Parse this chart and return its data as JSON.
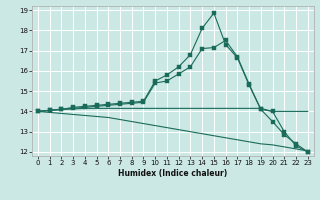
{
  "xlabel": "Humidex (Indice chaleur)",
  "xlim": [
    -0.5,
    23.5
  ],
  "ylim": [
    11.8,
    19.2
  ],
  "xticks": [
    0,
    1,
    2,
    3,
    4,
    5,
    6,
    7,
    8,
    9,
    10,
    11,
    12,
    13,
    14,
    15,
    16,
    17,
    18,
    19,
    20,
    21,
    22,
    23
  ],
  "yticks": [
    12,
    13,
    14,
    15,
    16,
    17,
    18,
    19
  ],
  "bg_color": "#cce8e5",
  "grid_color": "#ffffff",
  "line_color": "#1a6b5a",
  "lines": [
    {
      "x": [
        0,
        1,
        2,
        3,
        4,
        5,
        6,
        7,
        8,
        9,
        10,
        11,
        12,
        13,
        14,
        15,
        16,
        17,
        18,
        19,
        20,
        21,
        22,
        23
      ],
      "y": [
        14.0,
        14.05,
        14.1,
        14.12,
        14.15,
        14.15,
        14.15,
        14.15,
        14.15,
        14.15,
        14.15,
        14.15,
        14.15,
        14.15,
        14.15,
        14.15,
        14.15,
        14.15,
        14.15,
        14.15,
        14.0,
        14.0,
        14.0,
        14.0
      ],
      "marker": false,
      "linestyle": "-",
      "linewidth": 0.8
    },
    {
      "x": [
        0,
        1,
        2,
        3,
        4,
        5,
        6,
        7,
        8,
        9,
        10,
        11,
        12,
        13,
        14,
        15,
        16,
        17,
        18,
        19,
        20,
        21,
        22,
        23
      ],
      "y": [
        14.0,
        13.95,
        13.9,
        13.85,
        13.8,
        13.75,
        13.7,
        13.6,
        13.5,
        13.4,
        13.3,
        13.2,
        13.1,
        13.0,
        12.9,
        12.8,
        12.7,
        12.6,
        12.5,
        12.4,
        12.35,
        12.25,
        12.15,
        12.05
      ],
      "marker": false,
      "linestyle": "-",
      "linewidth": 0.8
    },
    {
      "x": [
        0,
        1,
        2,
        3,
        4,
        5,
        6,
        7,
        8,
        9,
        10,
        11,
        12,
        13,
        14,
        15,
        16,
        17,
        18,
        19,
        20,
        21,
        22,
        23
      ],
      "y": [
        14.0,
        14.05,
        14.1,
        14.15,
        14.2,
        14.25,
        14.3,
        14.35,
        14.4,
        14.45,
        15.4,
        15.5,
        15.85,
        16.2,
        17.1,
        17.15,
        17.5,
        16.7,
        15.35,
        14.1,
        13.5,
        12.85,
        12.4,
        12.0
      ],
      "marker": true,
      "markersize": 2.5,
      "linestyle": "-",
      "linewidth": 0.8
    },
    {
      "x": [
        0,
        1,
        2,
        3,
        4,
        5,
        6,
        7,
        8,
        9,
        10,
        11,
        12,
        13,
        14,
        15,
        16,
        17,
        18,
        19,
        20,
        21,
        22,
        23
      ],
      "y": [
        14.0,
        14.05,
        14.1,
        14.2,
        14.25,
        14.3,
        14.35,
        14.4,
        14.45,
        14.5,
        15.5,
        15.8,
        16.2,
        16.8,
        18.1,
        18.85,
        17.3,
        16.65,
        15.3,
        14.1,
        14.0,
        13.0,
        12.3,
        12.0
      ],
      "marker": true,
      "markersize": 2.5,
      "linestyle": "-",
      "linewidth": 0.8
    }
  ]
}
